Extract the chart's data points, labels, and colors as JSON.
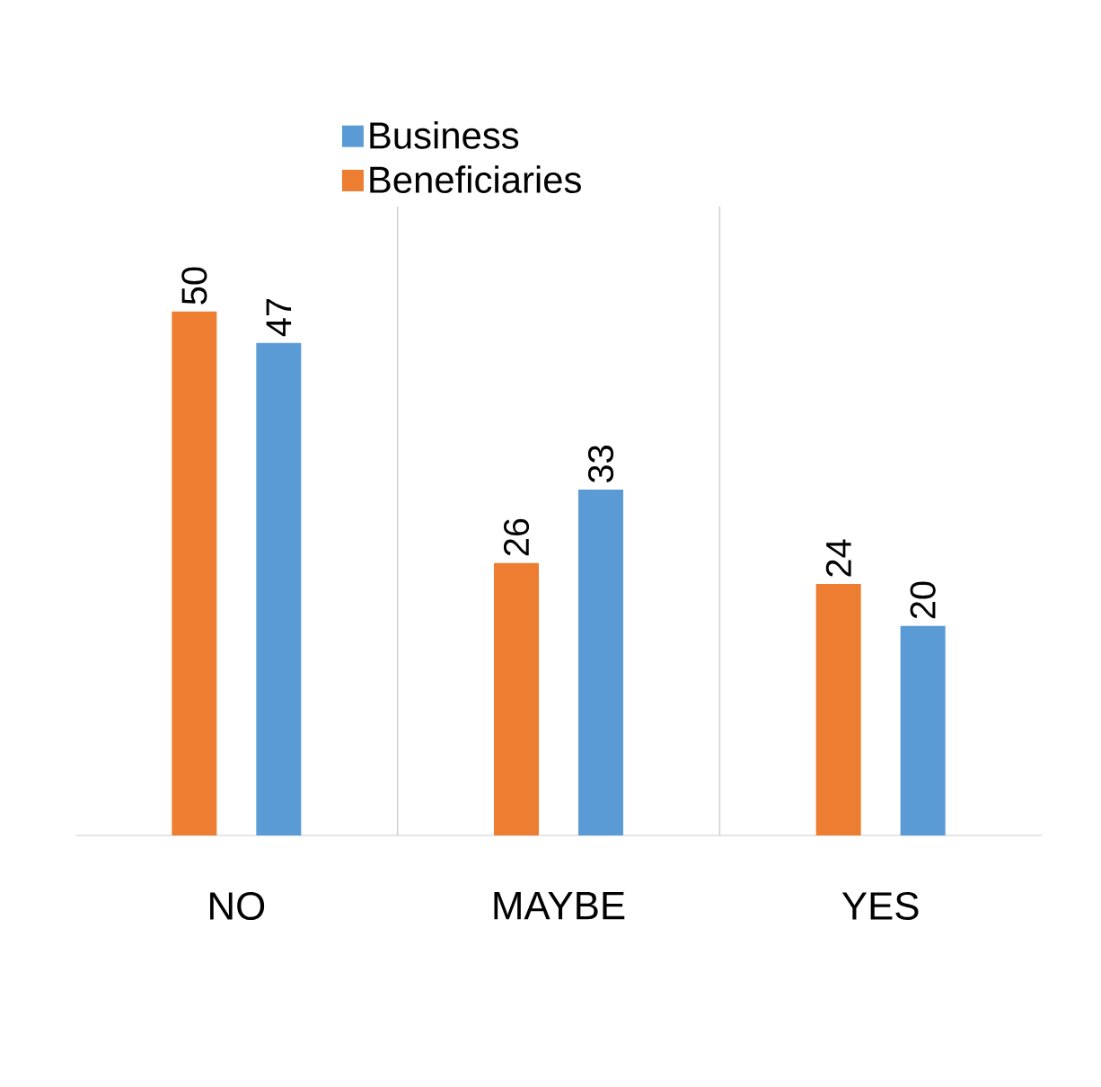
{
  "chart_data": {
    "type": "bar",
    "categories": [
      "NO",
      "MAYBE",
      "YES"
    ],
    "series": [
      {
        "name": "Beneficiaries",
        "color": "#ed7d31",
        "values": [
          50,
          26,
          24
        ]
      },
      {
        "name": "Business",
        "color": "#5b9bd5",
        "values": [
          47,
          33,
          20
        ]
      }
    ],
    "data_labels": true,
    "grid": "x",
    "legend": "top"
  }
}
